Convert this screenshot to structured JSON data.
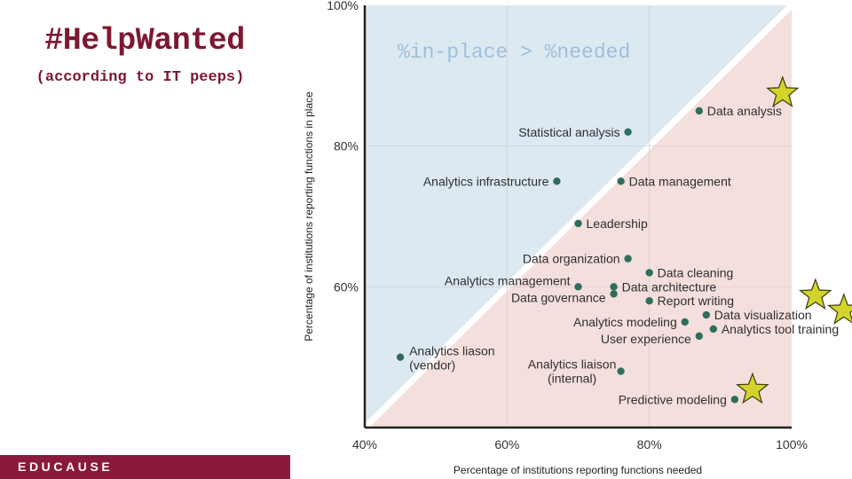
{
  "slide": {
    "headline": "#HelpWanted",
    "subhead": "(according to IT peeps)",
    "footer_brand": "EDUCAUSE"
  },
  "chart_data": {
    "type": "scatter",
    "xlabel": "Percentage of institutions reporting functions needed",
    "ylabel": "Percentage of institutions reporting functions in place",
    "xlim": [
      40,
      100
    ],
    "ylim": [
      40,
      100
    ],
    "x_ticks": [
      "40%",
      "60%",
      "80%",
      "100%"
    ],
    "y_ticks": [
      "60%",
      "80%",
      "100%"
    ],
    "annotation": "%in-place > %needed",
    "grid": true,
    "points": [
      {
        "label": "Data analysis",
        "x": 87,
        "y": 85,
        "star": true
      },
      {
        "label": "Statistical analysis",
        "x": 77,
        "y": 82
      },
      {
        "label": "Analytics infrastructure",
        "x": 67,
        "y": 75
      },
      {
        "label": "Data management",
        "x": 76,
        "y": 75
      },
      {
        "label": "Leadership",
        "x": 70,
        "y": 69
      },
      {
        "label": "Data organization",
        "x": 77,
        "y": 64
      },
      {
        "label": "Data cleaning",
        "x": 80,
        "y": 62
      },
      {
        "label": "Analytics management",
        "x": 70,
        "y": 60
      },
      {
        "label": "Data architecture",
        "x": 75,
        "y": 60
      },
      {
        "label": "Data governance",
        "x": 75,
        "y": 59
      },
      {
        "label": "Report writing",
        "x": 80,
        "y": 58
      },
      {
        "label": "Data visualization",
        "x": 88,
        "y": 56,
        "star": true
      },
      {
        "label": "Analytics modeling",
        "x": 85,
        "y": 55
      },
      {
        "label": "Analytics tool training",
        "x": 89,
        "y": 54,
        "star": true
      },
      {
        "label": "User experience",
        "x": 87,
        "y": 53
      },
      {
        "label": "Analytics liason (vendor)",
        "x": 45,
        "y": 50
      },
      {
        "label": "Analytics liaison (internal)",
        "x": 76,
        "y": 48
      },
      {
        "label": "Predictive modeling",
        "x": 92,
        "y": 44,
        "star": true
      }
    ],
    "colors": {
      "above_region": "#dde9f1",
      "below_region": "#f4dfdd",
      "diagonal": "#ffffff",
      "point": "#2e6e5c",
      "star": "#d2d42a",
      "star_outline": "#3a3a12"
    }
  }
}
